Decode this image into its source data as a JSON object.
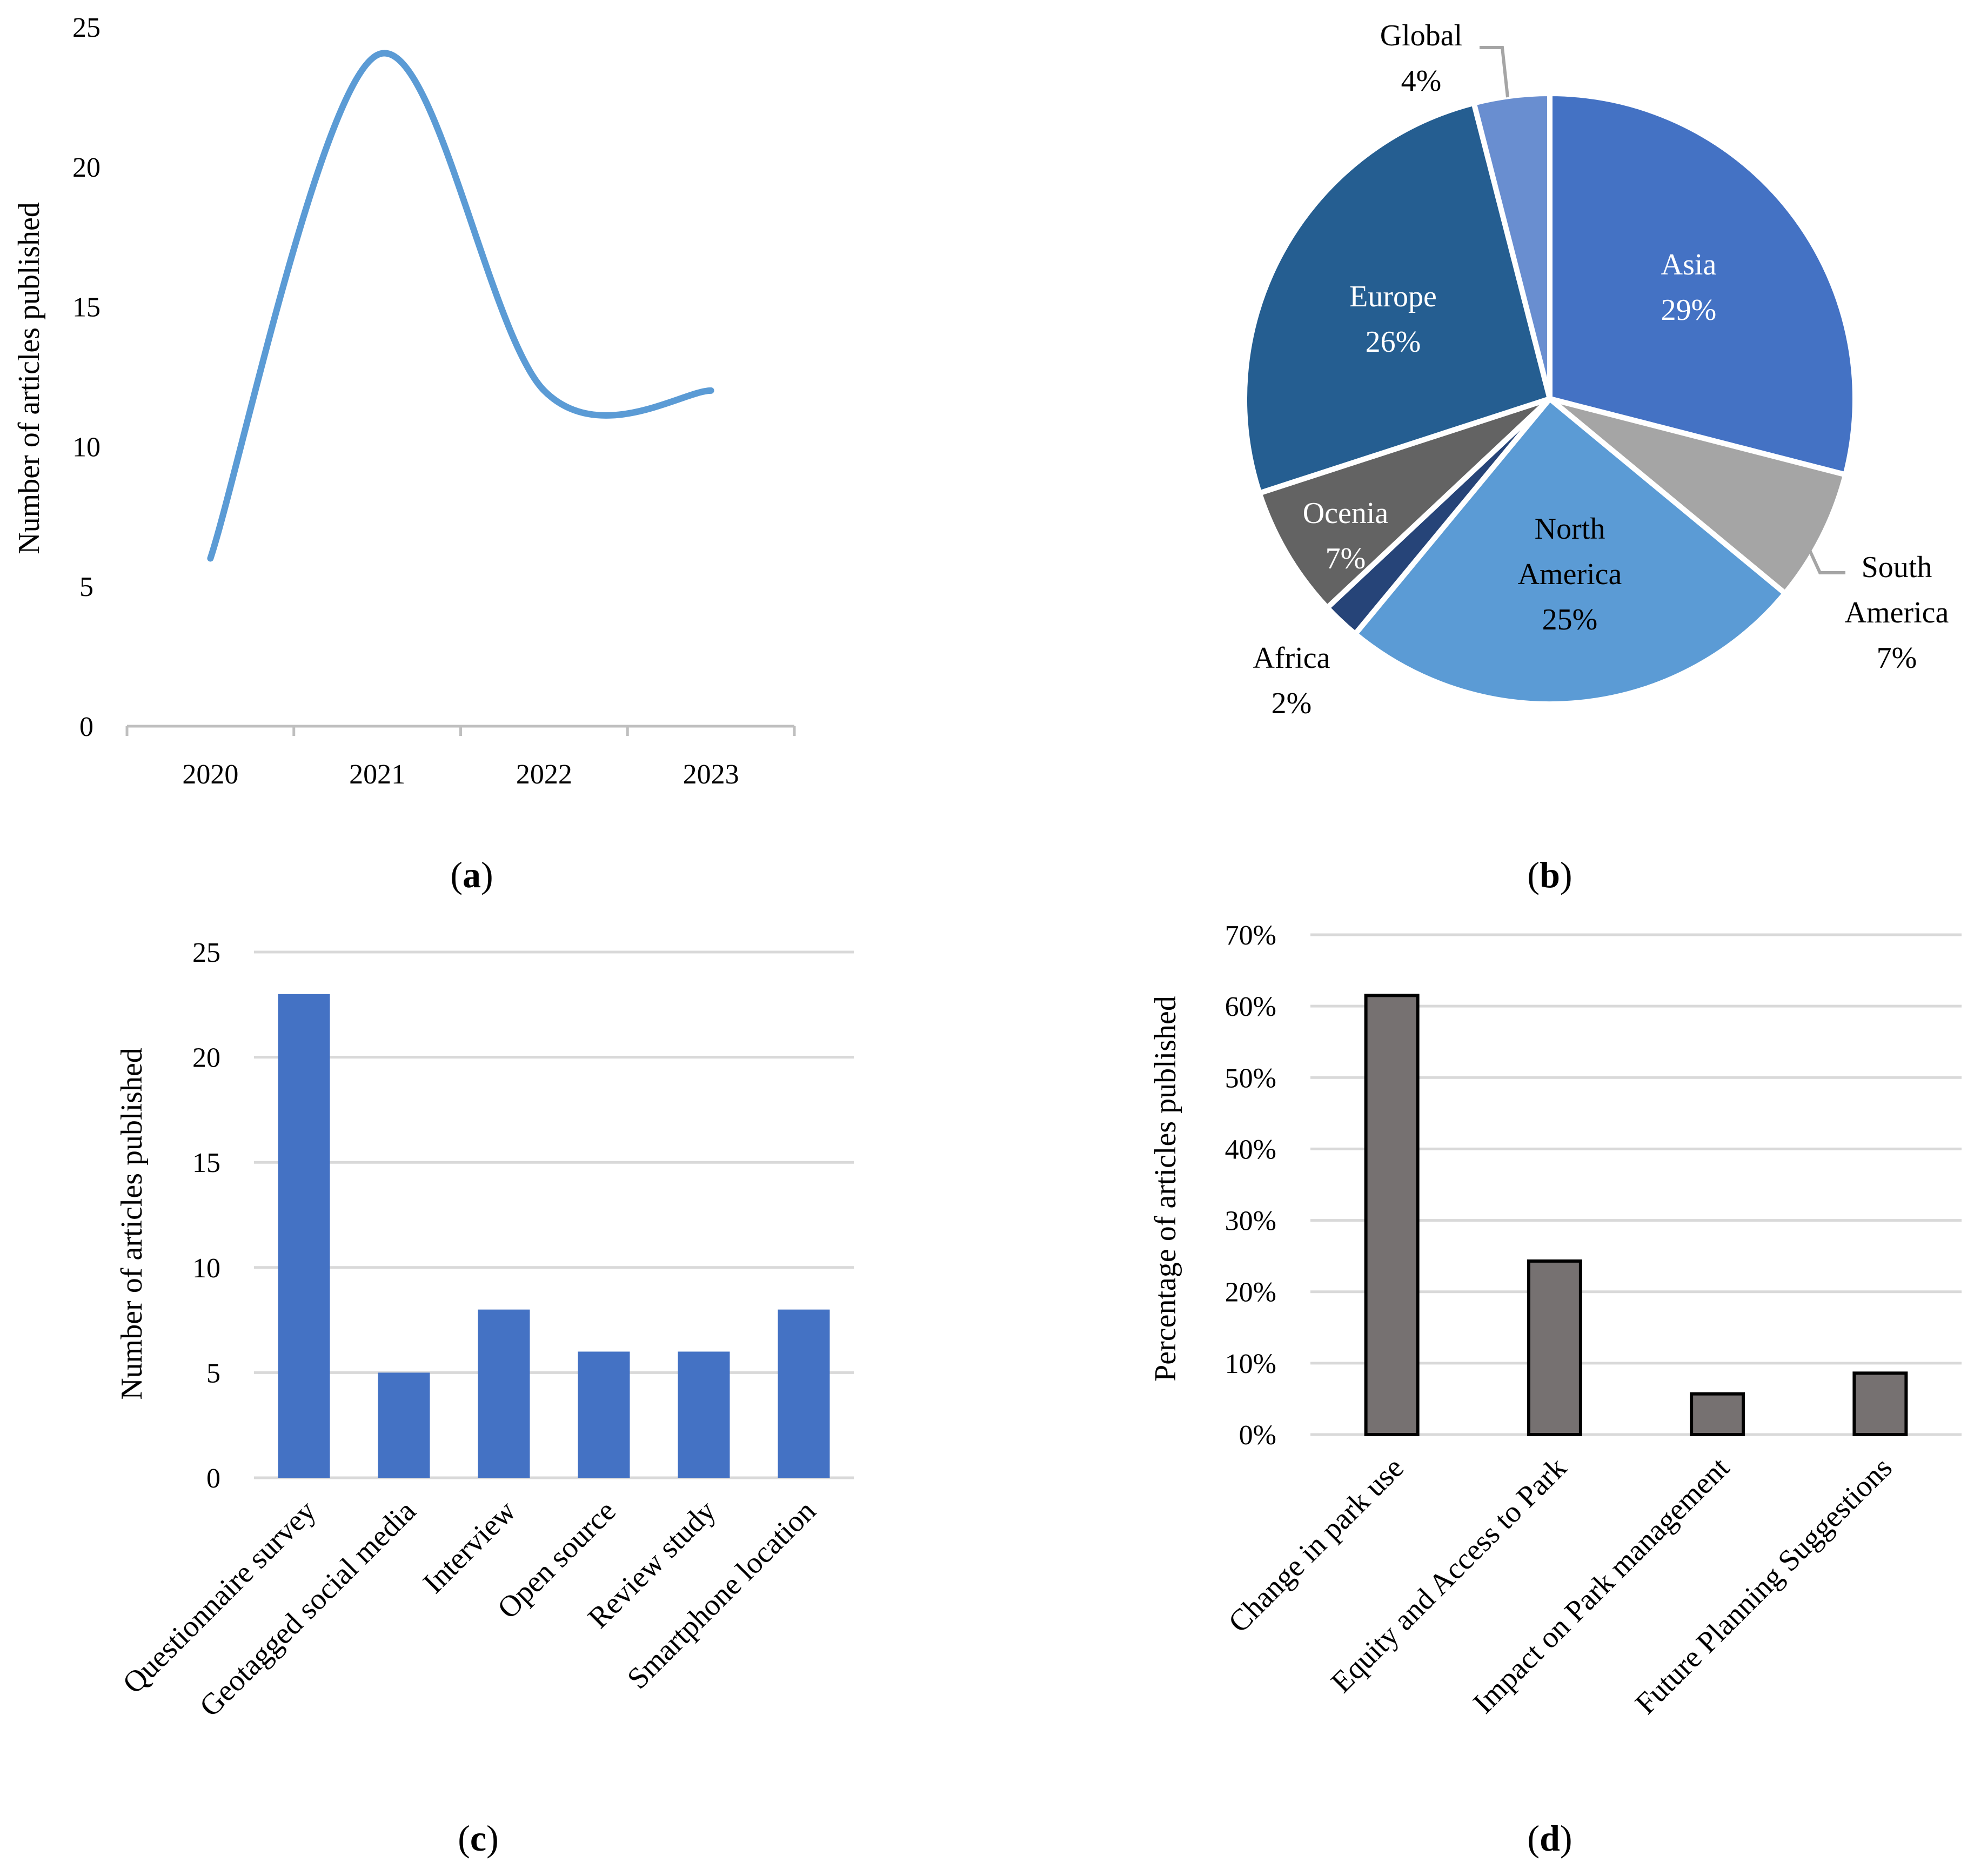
{
  "chart_data": [
    {
      "id": "a",
      "type": "line",
      "caption": {
        "open": "(",
        "letter": "a",
        "close": ")"
      },
      "x": [
        "2020",
        "2021",
        "2022",
        "2023"
      ],
      "values": [
        6,
        24,
        12,
        12
      ],
      "ylabel": "Number of articles published",
      "ylim": [
        0,
        25
      ],
      "yticks": [
        "0",
        "5",
        "10",
        "15",
        "20",
        "25"
      ],
      "color": "#5B9BD5",
      "grid": false
    },
    {
      "id": "b",
      "type": "pie",
      "caption": {
        "open": "(",
        "letter": "b",
        "close": ")"
      },
      "slices": [
        {
          "name": "Asia",
          "name2": "",
          "pct": "29%",
          "value": 29,
          "color": "#4472C4",
          "label_color": "#FFFFFF"
        },
        {
          "name": "South",
          "name2": "America",
          "pct": "7%",
          "value": 7,
          "color": "#A5A5A5",
          "label_color": "#000000"
        },
        {
          "name": "North",
          "name2": "America",
          "pct": "25%",
          "value": 25,
          "color": "#5B9BD5",
          "label_color": "#000000"
        },
        {
          "name": "Africa",
          "name2": "",
          "pct": "2%",
          "value": 2,
          "color": "#264478",
          "label_color": "#000000"
        },
        {
          "name": "Ocenia",
          "name2": "",
          "pct": "7%",
          "value": 7,
          "color": "#636363",
          "label_color": "#FFFFFF"
        },
        {
          "name": "Europe",
          "name2": "",
          "pct": "26%",
          "value": 26,
          "color": "#255E91",
          "label_color": "#FFFFFF"
        },
        {
          "name": "Global",
          "name2": "",
          "pct": "4%",
          "value": 4,
          "color": "#698ED0",
          "label_color": "#000000"
        }
      ]
    },
    {
      "id": "c",
      "type": "bar",
      "caption": {
        "open": "(",
        "letter": "c",
        "close": ")"
      },
      "categories": [
        "Questionnaire survey",
        "Geotagged social media",
        "Interview",
        "Open source",
        "Review study",
        "Smartphone location"
      ],
      "values": [
        23,
        5,
        8,
        6,
        6,
        8
      ],
      "ylabel": "Number of articles published",
      "ylim": [
        0,
        25
      ],
      "yticks": [
        "0",
        "5",
        "10",
        "15",
        "20",
        "25"
      ],
      "color": "#4472C4",
      "grid": true
    },
    {
      "id": "d",
      "type": "bar",
      "caption": {
        "open": "(",
        "letter": "d",
        "close": ")"
      },
      "categories": [
        "Change in park use",
        "Equity and Access to Park",
        "Impact on Park management",
        "Future Planning Suggestions"
      ],
      "values": [
        61.5,
        24.3,
        5.7,
        8.6
      ],
      "ylabel": "Percentage of articles published",
      "ylim": [
        0,
        70
      ],
      "yticks": [
        "0%",
        "10%",
        "20%",
        "30%",
        "40%",
        "50%",
        "60%",
        "70%"
      ],
      "color": "#767171",
      "grid": true
    }
  ]
}
